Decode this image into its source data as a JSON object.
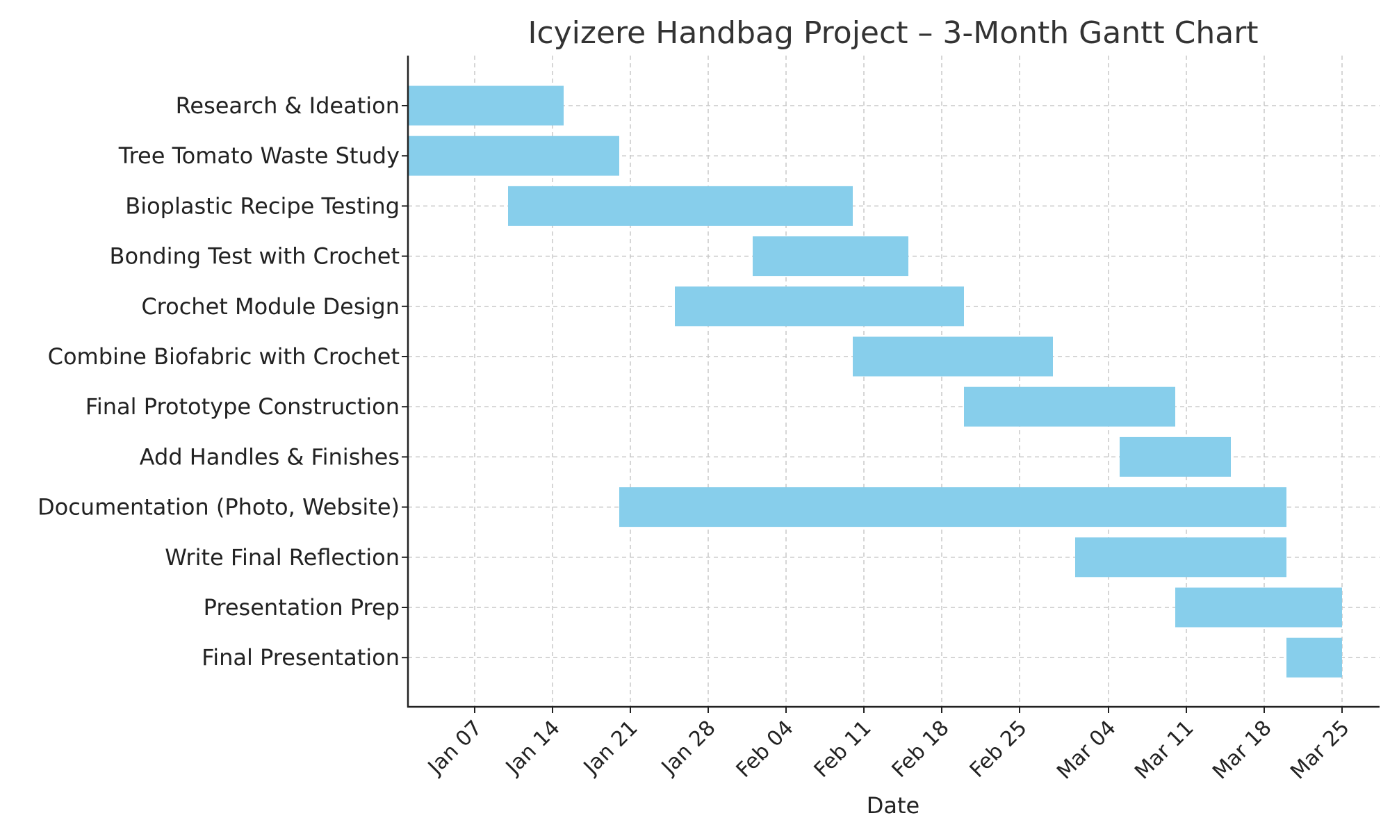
{
  "chart_data": {
    "type": "gantt",
    "title": "Icyizere Handbag Project – 3-Month Gantt Chart",
    "xlabel": "Date",
    "ylabel": "",
    "xlim": [
      "2024-01-01",
      "2024-03-31"
    ],
    "x_ticks": [
      {
        "date": "2024-01-07",
        "label": "Jan 07"
      },
      {
        "date": "2024-01-14",
        "label": "Jan 14"
      },
      {
        "date": "2024-01-21",
        "label": "Jan 21"
      },
      {
        "date": "2024-01-28",
        "label": "Jan 28"
      },
      {
        "date": "2024-02-04",
        "label": "Feb 04"
      },
      {
        "date": "2024-02-11",
        "label": "Feb 11"
      },
      {
        "date": "2024-02-18",
        "label": "Feb 18"
      },
      {
        "date": "2024-02-25",
        "label": "Feb 25"
      },
      {
        "date": "2024-03-04",
        "label": "Mar 04"
      },
      {
        "date": "2024-03-11",
        "label": "Mar 11"
      },
      {
        "date": "2024-03-18",
        "label": "Mar 18"
      },
      {
        "date": "2024-03-25",
        "label": "Mar 25"
      }
    ],
    "grid": true,
    "bar_color": "#87ceeb",
    "tasks": [
      {
        "name": "Research & Ideation",
        "start": "2024-01-01",
        "end": "2024-01-15"
      },
      {
        "name": "Tree Tomato Waste Study",
        "start": "2024-01-01",
        "end": "2024-01-20"
      },
      {
        "name": "Bioplastic Recipe Testing",
        "start": "2024-01-10",
        "end": "2024-02-10"
      },
      {
        "name": "Bonding Test with Crochet",
        "start": "2024-02-01",
        "end": "2024-02-15"
      },
      {
        "name": "Crochet Module Design",
        "start": "2024-01-25",
        "end": "2024-02-20"
      },
      {
        "name": "Combine Biofabric with Crochet",
        "start": "2024-02-10",
        "end": "2024-02-28"
      },
      {
        "name": "Final Prototype Construction",
        "start": "2024-02-20",
        "end": "2024-03-10"
      },
      {
        "name": "Add Handles & Finishes",
        "start": "2024-03-05",
        "end": "2024-03-15"
      },
      {
        "name": "Documentation (Photo, Website)",
        "start": "2024-01-20",
        "end": "2024-03-20"
      },
      {
        "name": "Write Final Reflection",
        "start": "2024-03-01",
        "end": "2024-03-20"
      },
      {
        "name": "Presentation Prep",
        "start": "2024-03-10",
        "end": "2024-03-25"
      },
      {
        "name": "Final Presentation",
        "start": "2024-03-20",
        "end": "2024-03-25"
      }
    ]
  }
}
